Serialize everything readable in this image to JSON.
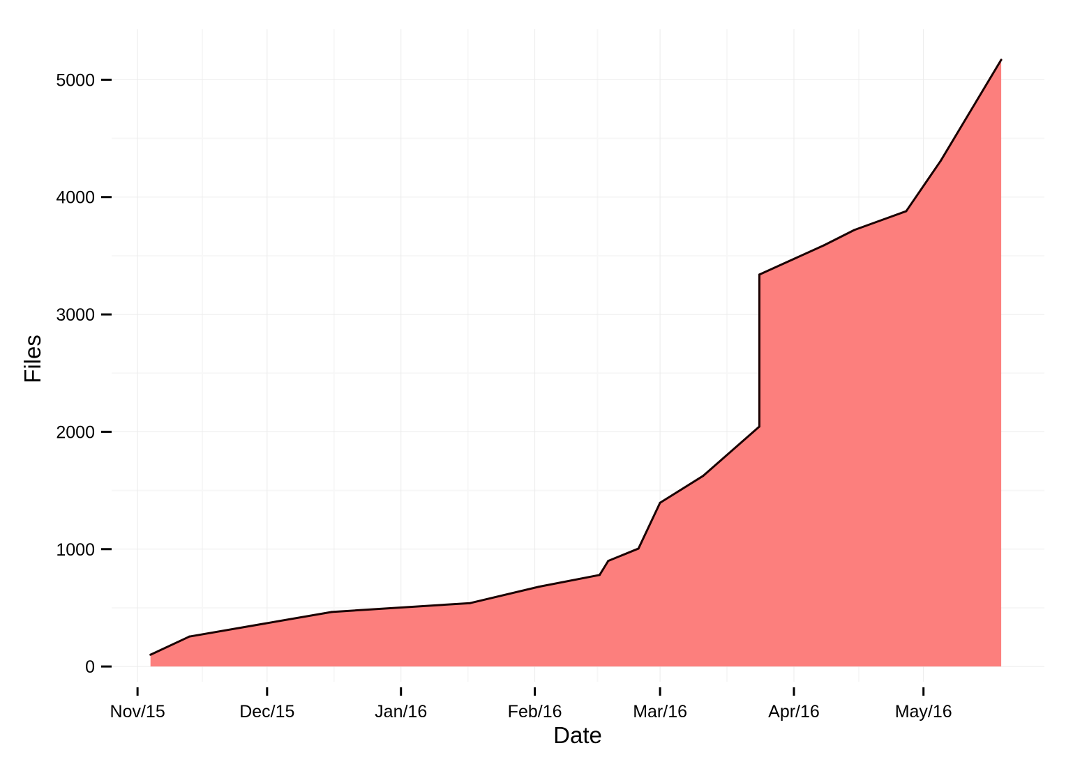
{
  "chart_data": {
    "type": "area",
    "title": "",
    "xlabel": "Date",
    "ylabel": "Files",
    "x_ticks": [
      "Nov/15",
      "Dec/15",
      "Jan/16",
      "Feb/16",
      "Mar/16",
      "Apr/16",
      "May/16"
    ],
    "x_tick_dates": [
      "2015-11-01",
      "2015-12-01",
      "2016-01-01",
      "2016-02-01",
      "2016-03-01",
      "2016-04-01",
      "2016-05-01"
    ],
    "y_ticks": [
      0,
      1000,
      2000,
      3000,
      4000,
      5000
    ],
    "xlim": [
      "2015-10-26",
      "2016-05-29"
    ],
    "ylim": [
      -130,
      5430
    ],
    "grid": true,
    "legend": "none",
    "fill_color": "#fc7f7d",
    "line_color": "#1a0000",
    "x": [
      "2015-11-04",
      "2015-11-13",
      "2015-12-16",
      "2016-01-17",
      "2016-02-02",
      "2016-02-16",
      "2016-02-18",
      "2016-02-25",
      "2016-03-01",
      "2016-03-11",
      "2016-03-24",
      "2016-03-24",
      "2016-04-08",
      "2016-04-15",
      "2016-04-27",
      "2016-05-05",
      "2016-05-19"
    ],
    "y": [
      100,
      255,
      465,
      540,
      680,
      780,
      900,
      1005,
      1395,
      1625,
      2045,
      3340,
      3590,
      3720,
      3880,
      4310,
      5170
    ]
  }
}
